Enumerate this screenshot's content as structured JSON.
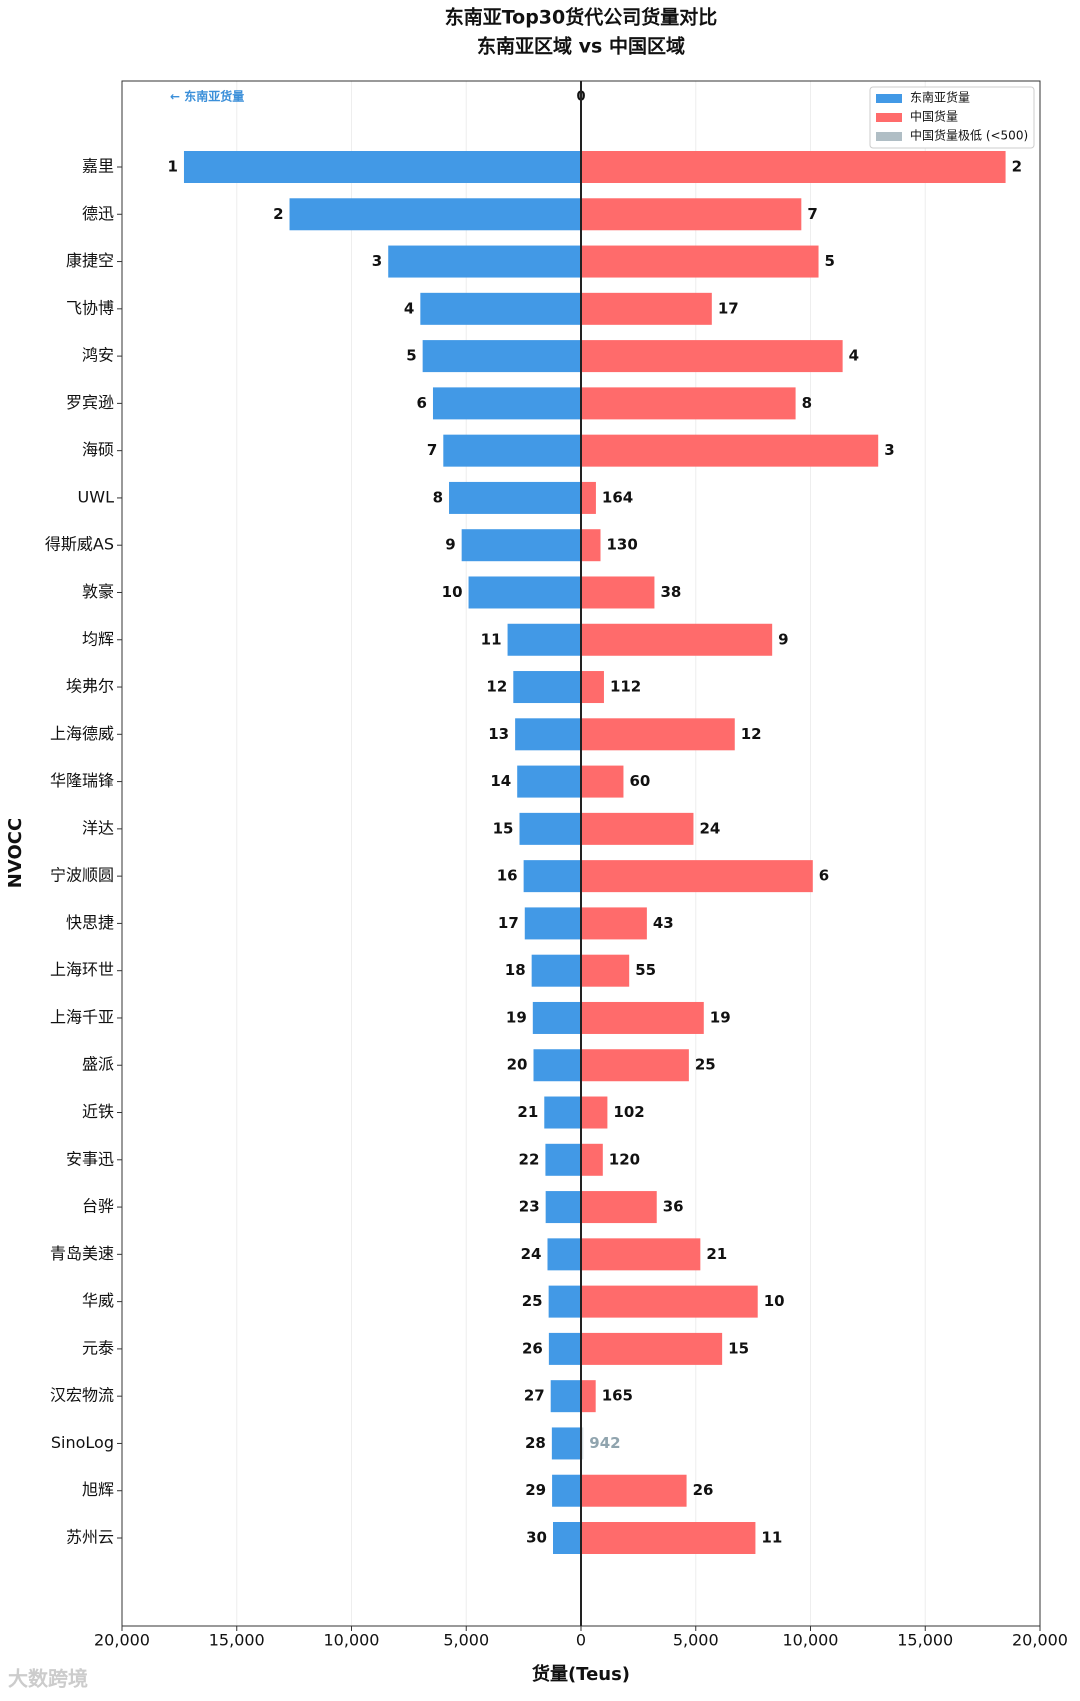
{
  "chart_data": {
    "type": "diverging_bar",
    "title": "东南亚Top30货代公司货量对比",
    "subtitle": "东南亚区域 vs 中国区域",
    "x_label": "货量(Teus)",
    "y_label": "NVOCC",
    "annotation_left": "← 东南亚货量",
    "annotation_zero": "0",
    "watermark": "大数跨境",
    "categories": [
      "嘉里",
      "德迅",
      "康捷空",
      "飞协博",
      "鸿安",
      "罗宾逊",
      "海硕",
      "UWL",
      "得斯威AS",
      "敦豪",
      "均辉",
      "埃弗尔",
      "上海德威",
      "华隆瑞锋",
      "洋达",
      "宁波顺圆",
      "快思捷",
      "上海环世",
      "上海千亚",
      "盛派",
      "近铁",
      "安事迅",
      "台骅",
      "青岛美速",
      "华威",
      "元泰",
      "汉宏物流",
      "SinoLog",
      "旭辉",
      "苏州云"
    ],
    "series": [
      {
        "name": "东南亚货量",
        "color": "#4299e6",
        "side": "left",
        "values": [
          17300,
          12700,
          8400,
          7000,
          6900,
          6450,
          6000,
          5750,
          5200,
          4900,
          3200,
          2950,
          2870,
          2780,
          2680,
          2500,
          2450,
          2150,
          2100,
          2070,
          1600,
          1550,
          1540,
          1460,
          1410,
          1400,
          1320,
          1270,
          1260,
          1220
        ],
        "ranks": [
          1,
          2,
          3,
          4,
          5,
          6,
          7,
          8,
          9,
          10,
          11,
          12,
          13,
          14,
          15,
          16,
          17,
          18,
          19,
          20,
          21,
          22,
          23,
          24,
          25,
          26,
          27,
          28,
          29,
          30
        ]
      },
      {
        "name": "中国货量",
        "color": "#ff6b6b",
        "side": "right",
        "values": [
          18500,
          9600,
          10350,
          5700,
          11400,
          9350,
          12950,
          650,
          850,
          3200,
          8330,
          1000,
          6700,
          1850,
          4900,
          10100,
          2870,
          2100,
          5350,
          4700,
          1150,
          950,
          3300,
          5200,
          7700,
          6150,
          640,
          100,
          4600,
          7600
        ],
        "ranks": [
          2,
          7,
          5,
          17,
          4,
          8,
          3,
          164,
          130,
          38,
          9,
          112,
          12,
          60,
          24,
          6,
          43,
          55,
          19,
          25,
          102,
          120,
          36,
          21,
          10,
          15,
          165,
          942,
          26,
          11
        ]
      }
    ],
    "low_legend": {
      "name": "中国货量极低 (<500)",
      "color": "#b0bec5"
    },
    "low_threshold": 500,
    "xlim": [
      -20000,
      20000
    ],
    "xticks": [
      {
        "value": -20000,
        "label": "20,000"
      },
      {
        "value": -15000,
        "label": "15,000"
      },
      {
        "value": -10000,
        "label": "10,000"
      },
      {
        "value": -5000,
        "label": "5,000"
      },
      0,
      {
        "value": 5000,
        "label": "5,000"
      },
      {
        "value": 10000,
        "label": "10,000"
      },
      {
        "value": 15000,
        "label": "15,000"
      },
      {
        "value": 20000,
        "label": "20,000"
      }
    ],
    "grid": true,
    "legend_position": "upper right"
  }
}
